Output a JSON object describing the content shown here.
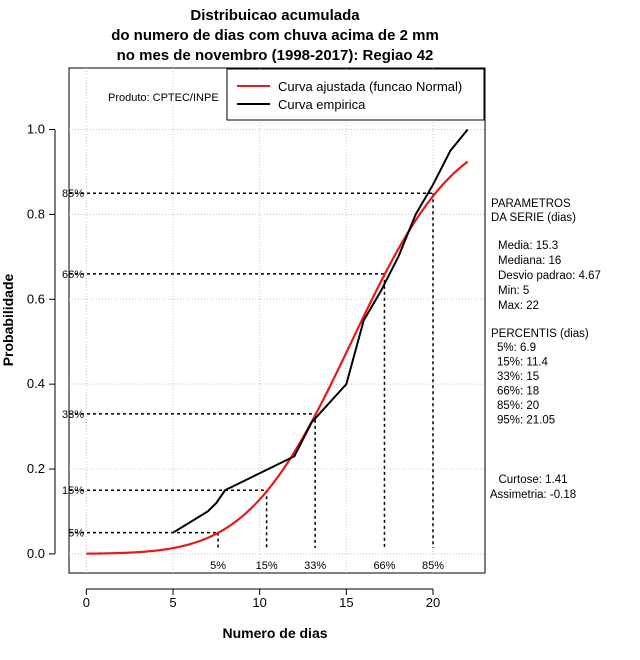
{
  "chart_data": {
    "type": "line",
    "title": [
      "Distribuicao acumulada",
      "do numero de dias com chuva acima de 2 mm",
      "no mes de novembro (1998-2017): Regiao 42"
    ],
    "xlabel": "Numero de dias",
    "ylabel": "Probabilidade",
    "xlim": [
      -1,
      23
    ],
    "ylim": [
      -0.045,
      1.145
    ],
    "xticks": [
      0,
      5,
      10,
      15,
      20
    ],
    "yticks": [
      0.0,
      0.2,
      0.4,
      0.6,
      0.8,
      1.0
    ],
    "xtick_labels": [
      "0",
      "5",
      "10",
      "15",
      "20"
    ],
    "ytick_labels": [
      "0.0",
      "0.2",
      "0.4",
      "0.6",
      "0.8",
      "1.0"
    ],
    "grid": true,
    "legend_position": "top-right",
    "credit": "Produto: CPTEC/INPE",
    "series": [
      {
        "name": "Curva ajustada (funcao Normal)",
        "color": "#e41a1c",
        "distribution": {
          "mean": 15.3,
          "sd": 4.67
        },
        "x_range": [
          0,
          22
        ]
      },
      {
        "name": "Curva empirica",
        "color": "#000000",
        "x": [
          5,
          7,
          7.5,
          8,
          10,
          12,
          13,
          15,
          16,
          17,
          18,
          19,
          20,
          21,
          22
        ],
        "y": [
          0.05,
          0.1,
          0.12,
          0.15,
          0.19,
          0.23,
          0.31,
          0.4,
          0.55,
          0.62,
          0.7,
          0.8,
          0.87,
          0.95,
          1.0
        ]
      }
    ],
    "percentile_lines": [
      {
        "label": "5%",
        "p": 0.05,
        "x": 7.6
      },
      {
        "label": "15%",
        "p": 0.15,
        "x": 10.4
      },
      {
        "label": "33%",
        "p": 0.33,
        "x": 13.2
      },
      {
        "label": "66%",
        "p": 0.66,
        "x": 17.2
      },
      {
        "label": "85%",
        "p": 0.85,
        "x": 20.0
      }
    ],
    "parameters": {
      "heading": [
        "PARAMETROS",
        "DA SERIE (dias)"
      ],
      "lines": [
        "Media: 15.3",
        "Mediana: 16",
        "Desvio padrao: 4.67",
        "Min: 5",
        "Max: 22"
      ]
    },
    "percentis": {
      "heading": "PERCENTIS (dias)",
      "lines": [
        "5%: 6.9",
        "15%: 11.4",
        "33%: 15",
        "66%: 18",
        "85%: 20",
        "95%: 21.05"
      ]
    },
    "shape": {
      "lines": [
        "Curtose: 1.41",
        "Assimetria: -0.18"
      ]
    }
  }
}
